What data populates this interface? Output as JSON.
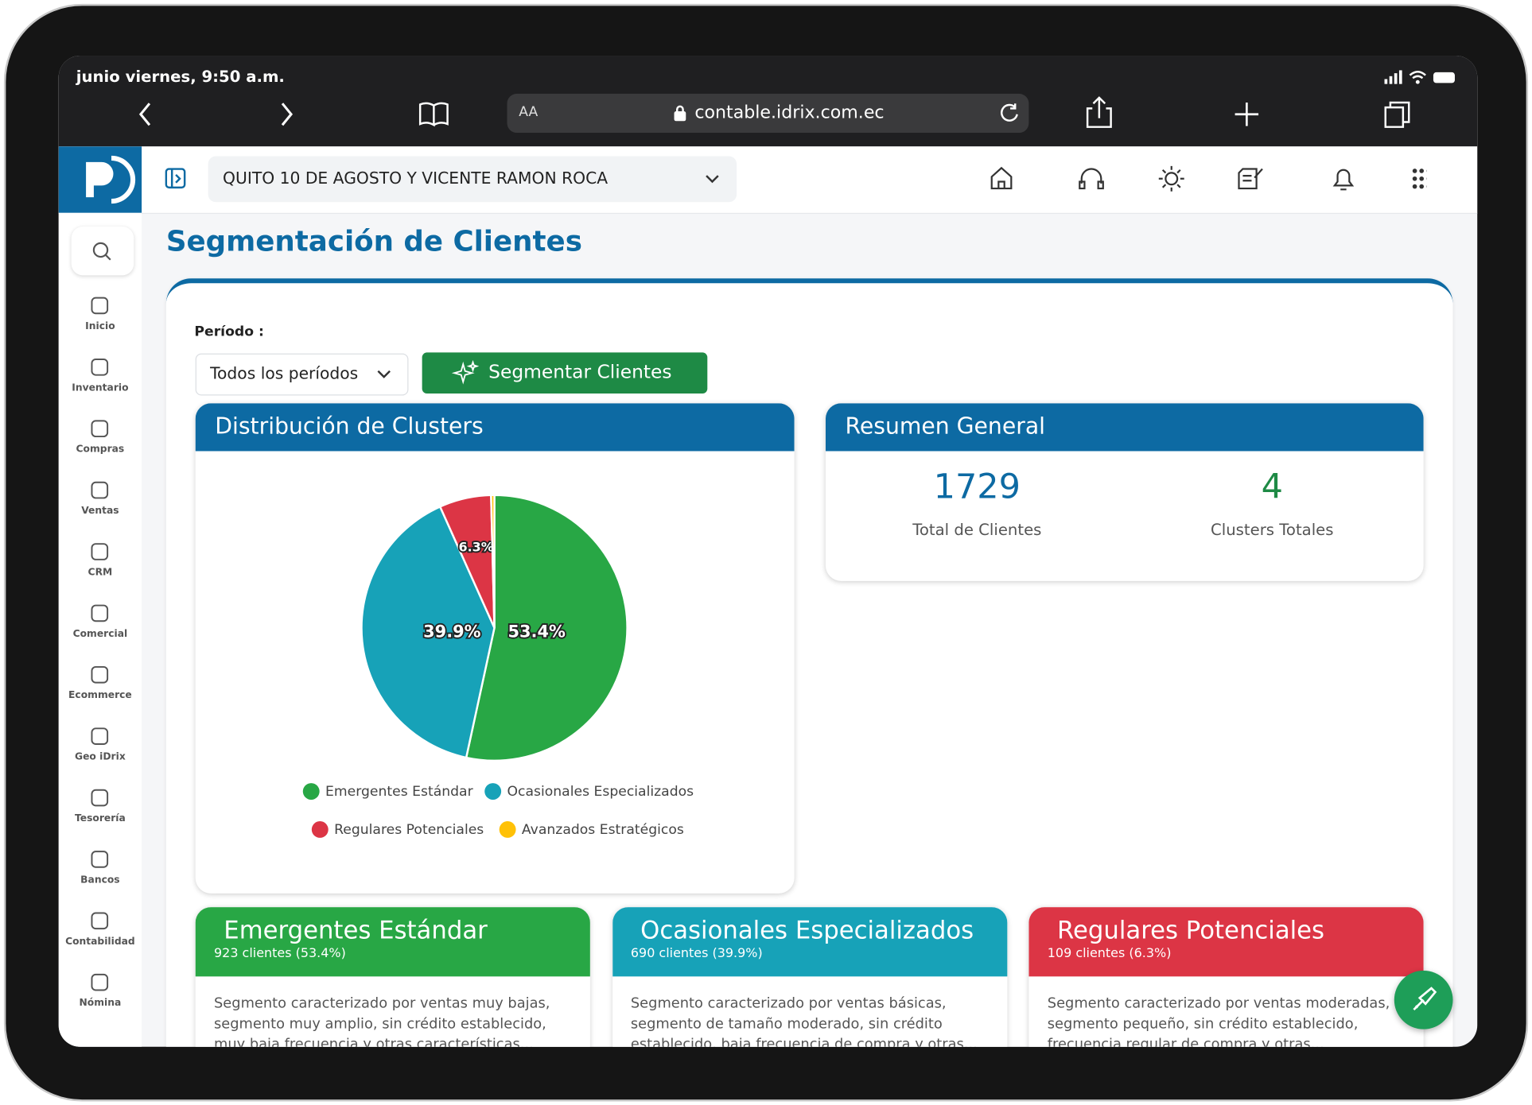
{
  "status_bar": {
    "time": "junio viernes, 9:50 a.m."
  },
  "browser": {
    "text_size": "AA",
    "url": "contable.idrix.com.ec"
  },
  "header": {
    "location": "QUITO 10 DE AGOSTO Y VICENTE RAMON ROCA"
  },
  "sidebar": {
    "items": [
      "Inicio",
      "Inventario",
      "Compras",
      "Ventas",
      "CRM",
      "Comercial",
      "Ecommerce",
      "Geo iDrix",
      "Tesorería",
      "Bancos",
      "Contabilidad",
      "Nómina"
    ]
  },
  "page": {
    "title": "Segmentación de Clientes",
    "period_label": "Período :",
    "period_select": "Todos los períodos",
    "segment_button": "Segmentar Clientes"
  },
  "chart_data": {
    "type": "pie",
    "title": "Distribución de Clusters",
    "categories": [
      "Emergentes Estándar",
      "Ocasionales Especializados",
      "Regulares Potenciales",
      "Avanzados Estratégicos"
    ],
    "values": [
      53.4,
      39.9,
      6.3,
      0.4
    ],
    "value_labels": [
      "53.4%",
      "39.9%",
      "6.3%",
      null
    ],
    "colors": [
      "#28a745",
      "#17a2b8",
      "#dc3545",
      "#ffc107"
    ]
  },
  "summary": {
    "title": "Resumen General",
    "stats": [
      {
        "value": 1729,
        "label": "Total de Clientes"
      },
      {
        "value": 4,
        "label": "Clusters Totales"
      }
    ]
  },
  "segments": [
    {
      "name": "Emergentes Estándar",
      "subtitle": "923 clientes (53.4%)",
      "description": "Segmento caracterizado por ventas muy bajas, segmento muy amplio, sin crédito establecido, muy baja frecuencia y otras características..."
    },
    {
      "name": "Ocasionales Especializados",
      "subtitle": "690 clientes (39.9%)",
      "description": "Segmento caracterizado por ventas básicas, segmento de tamaño moderado, sin crédito establecido, baja frecuencia de compra y otras..."
    },
    {
      "name": "Regulares Potenciales",
      "subtitle": "109 clientes (6.3%)",
      "description": "Segmento caracterizado por ventas moderadas, segmento pequeño, sin crédito establecido, frecuencia regular de compra y otras..."
    }
  ]
}
